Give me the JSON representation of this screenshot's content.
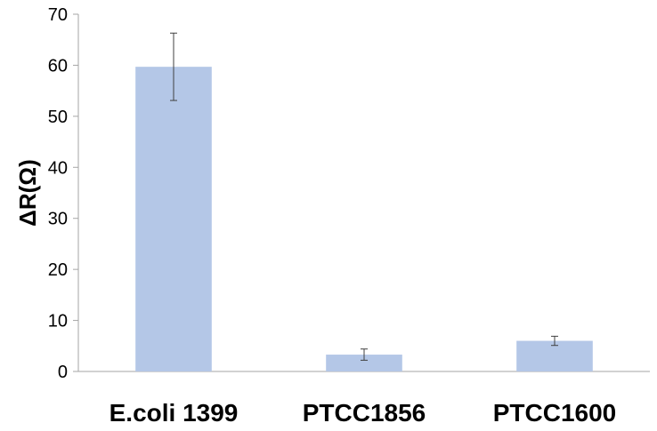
{
  "chart_data": {
    "type": "bar",
    "title": "",
    "xlabel": "",
    "ylabel": "ΔR(Ω)",
    "categories": [
      "E.coli 1399",
      "PTCC1856",
      "PTCC1600"
    ],
    "values": [
      59.7,
      3.3,
      6.0
    ],
    "errors": [
      6.6,
      1.1,
      0.9
    ],
    "ylim": [
      0,
      70
    ],
    "yticks": [
      0,
      10,
      20,
      30,
      40,
      50,
      60,
      70
    ],
    "grid": false,
    "legend": "none",
    "colors": {
      "bar": "#b4c7e7",
      "error_bar": "#404040",
      "axis": "#a6a6a6"
    }
  }
}
